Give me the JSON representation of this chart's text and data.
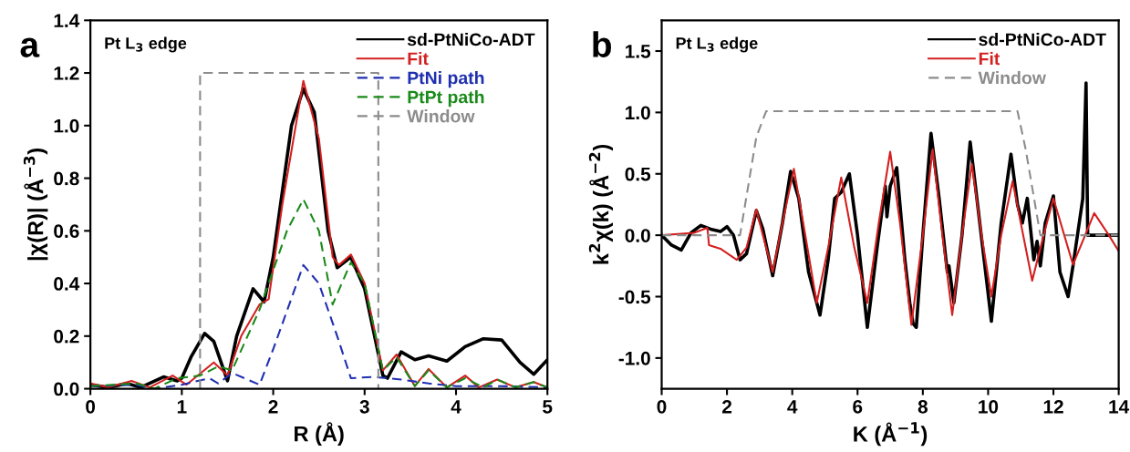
{
  "chart_data": [
    {
      "type": "line",
      "title": "a",
      "xlabel": "R (Å)",
      "ylabel": "|χ(R)| (Å$^{−3}$)",
      "annotations": [
        "Pt L$_{3}$ edge"
      ],
      "xlim": [
        0,
        5
      ],
      "xticks": [
        0,
        1,
        2,
        3,
        4,
        5
      ],
      "ylim": [
        0,
        1.4
      ],
      "yticks": [
        {
          "value": 0,
          "label": "0.0"
        },
        {
          "value": 0.2,
          "label": "0.2"
        },
        {
          "value": 0.4,
          "label": "0.4"
        },
        {
          "value": 0.6,
          "label": "0.6"
        },
        {
          "value": 0.8,
          "label": "0.8"
        },
        {
          "value": 1.0,
          "label": "1.0"
        },
        {
          "value": 1.2,
          "label": "1.2"
        },
        {
          "value": 1.4,
          "label": "1.4"
        }
      ],
      "legend": "top right",
      "grid": false,
      "series": [
        {
          "name": "sd-PtNiCo-ADT",
          "color": "#000000",
          "line_style": "solid",
          "x": [
            0,
            0.2,
            0.4,
            0.55,
            0.8,
            0.95,
            1.0,
            1.1,
            1.25,
            1.35,
            1.5,
            1.6,
            1.78,
            1.9,
            2.0,
            2.2,
            2.33,
            2.45,
            2.6,
            2.7,
            2.85,
            3.0,
            3.2,
            3.25,
            3.4,
            3.55,
            3.7,
            3.9,
            4.1,
            4.3,
            4.5,
            4.7,
            4.85,
            5.0
          ],
          "values": [
            0.015,
            0.005,
            0.02,
            0.005,
            0.045,
            0.03,
            0.04,
            0.12,
            0.21,
            0.18,
            0.03,
            0.2,
            0.38,
            0.33,
            0.5,
            1.0,
            1.14,
            1.05,
            0.6,
            0.46,
            0.5,
            0.38,
            0.05,
            0.04,
            0.14,
            0.11,
            0.125,
            0.105,
            0.16,
            0.19,
            0.185,
            0.1,
            0.055,
            0.11
          ]
        },
        {
          "name": "Fit",
          "color": "#d42020",
          "line_style": "solid",
          "x": [
            0,
            0.2,
            0.45,
            0.65,
            0.9,
            1.05,
            1.35,
            1.5,
            1.65,
            1.85,
            1.95,
            2.1,
            2.33,
            2.5,
            2.65,
            2.72,
            2.85,
            3.0,
            3.2,
            3.35,
            3.55,
            3.7,
            3.9,
            4.1,
            4.25,
            4.45,
            4.65,
            4.85,
            5.0
          ],
          "values": [
            0.02,
            0.005,
            0.03,
            0.005,
            0.05,
            0.015,
            0.1,
            0.05,
            0.2,
            0.32,
            0.34,
            0.7,
            1.17,
            0.95,
            0.5,
            0.47,
            0.51,
            0.4,
            0.07,
            0.13,
            0.01,
            0.075,
            0.005,
            0.05,
            0.005,
            0.035,
            0.005,
            0.025,
            0.005
          ]
        },
        {
          "name": "PtNi path",
          "color": "#1f2fb0",
          "line_style": "dashed",
          "x": [
            0,
            0.5,
            0.7,
            1.0,
            1.3,
            1.4,
            1.55,
            1.85,
            2.0,
            2.33,
            2.5,
            2.7,
            2.85,
            3.1,
            3.4,
            3.7,
            4.0,
            4.5,
            5.0
          ],
          "values": [
            0.01,
            0.015,
            0.0,
            0.015,
            0.04,
            0.02,
            0.06,
            0.015,
            0.15,
            0.47,
            0.4,
            0.2,
            0.04,
            0.045,
            0.035,
            0.02,
            0.01,
            0.01,
            0.005
          ]
        },
        {
          "name": "PtPt path",
          "color": "#1a8a1a",
          "line_style": "dashed",
          "x": [
            0,
            0.5,
            0.7,
            0.95,
            1.2,
            1.4,
            1.55,
            1.85,
            2.0,
            2.15,
            2.33,
            2.5,
            2.65,
            2.85,
            3.0,
            3.2,
            3.35,
            3.55,
            3.7,
            3.9,
            4.1,
            4.3,
            4.45,
            4.65,
            4.85,
            5.0
          ],
          "values": [
            0.01,
            0.02,
            0.0,
            0.04,
            0.05,
            0.085,
            0.07,
            0.3,
            0.45,
            0.6,
            0.72,
            0.6,
            0.32,
            0.48,
            0.4,
            0.07,
            0.12,
            0.01,
            0.07,
            0.005,
            0.04,
            0.005,
            0.035,
            0.005,
            0.025,
            0.005
          ]
        },
        {
          "name": "Window",
          "color": "#8c8c8c",
          "line_style": "dashed",
          "x": [
            1.2,
            1.2,
            3.15,
            3.15
          ],
          "values": [
            0,
            1.2,
            1.2,
            0
          ]
        }
      ]
    },
    {
      "type": "line",
      "title": "b",
      "xlabel": "K (Å$^{−1}$)",
      "ylabel": "k$^{2}$χ(k) (Å$^{−2}$)",
      "annotations": [
        "Pt L$_{3}$ edge"
      ],
      "xlim": [
        0,
        14
      ],
      "xticks": [
        0,
        2,
        4,
        6,
        8,
        10,
        12,
        14
      ],
      "ylim": [
        -1.25,
        1.75
      ],
      "yticks": [
        {
          "value": -1.0,
          "label": "-1.0"
        },
        {
          "value": -0.5,
          "label": "-0.5"
        },
        {
          "value": 0,
          "label": "0.0"
        },
        {
          "value": 0.5,
          "label": "0.5"
        },
        {
          "value": 1.0,
          "label": "1.0"
        },
        {
          "value": 1.5,
          "label": "1.5"
        }
      ],
      "legend": "top right",
      "grid": false,
      "series": [
        {
          "name": "sd-PtNiCo-ADT",
          "color": "#000000",
          "line_style": "solid",
          "x": [
            0,
            0.3,
            0.6,
            0.9,
            1.2,
            1.5,
            1.8,
            2.0,
            2.2,
            2.4,
            2.6,
            2.9,
            3.1,
            3.4,
            3.7,
            3.95,
            4.2,
            4.5,
            4.85,
            5.1,
            5.3,
            5.5,
            5.75,
            6.0,
            6.3,
            6.6,
            6.85,
            6.9,
            7.0,
            7.2,
            7.45,
            7.6,
            7.7,
            7.8,
            8.0,
            8.25,
            8.5,
            8.75,
            8.8,
            8.95,
            9.2,
            9.45,
            9.7,
            10.1,
            10.4,
            10.7,
            10.9,
            11.05,
            11.2,
            11.4,
            11.5,
            11.6,
            11.75,
            12.0,
            12.2,
            12.45,
            12.6,
            12.9,
            13.0,
            13.05,
            13.1,
            14
          ],
          "values": [
            0,
            -0.08,
            -0.12,
            0.02,
            0.08,
            0.05,
            0.03,
            0.07,
            0.0,
            -0.2,
            -0.15,
            0.2,
            0.05,
            -0.33,
            0.1,
            0.52,
            0.3,
            -0.3,
            -0.65,
            -0.2,
            0.3,
            0.35,
            0.5,
            0.0,
            -0.75,
            -0.1,
            0.4,
            0.15,
            0.4,
            0.55,
            -0.2,
            -0.55,
            -0.72,
            -0.75,
            0.0,
            0.83,
            0.3,
            -0.3,
            -0.25,
            -0.55,
            0.0,
            0.76,
            0.2,
            -0.7,
            0.1,
            0.66,
            0.25,
            0.1,
            0.3,
            -0.2,
            -0.05,
            -0.25,
            0.1,
            0.32,
            -0.3,
            -0.5,
            -0.25,
            0.3,
            1.24,
            0.0,
            0.0,
            0.0
          ]
        },
        {
          "name": "Fit",
          "color": "#d42020",
          "line_style": "solid",
          "x": [
            0,
            1.0,
            1.4,
            1.45,
            1.8,
            2.3,
            2.6,
            2.9,
            3.1,
            3.4,
            3.7,
            4.05,
            4.4,
            4.75,
            5.1,
            5.5,
            5.9,
            6.3,
            6.65,
            7.0,
            7.3,
            7.65,
            8.0,
            8.3,
            8.6,
            8.9,
            9.2,
            9.5,
            9.8,
            10.1,
            10.4,
            10.75,
            11.0,
            11.35,
            11.7,
            12.0,
            12.6,
            13.25,
            13.7,
            14
          ],
          "values": [
            0,
            0.02,
            0.06,
            -0.08,
            -0.11,
            -0.2,
            -0.1,
            0.21,
            0.0,
            -0.3,
            0.1,
            0.54,
            0.0,
            -0.55,
            -0.1,
            0.47,
            -0.1,
            -0.55,
            0.1,
            0.68,
            0.1,
            -0.73,
            0.0,
            0.7,
            0.0,
            -0.65,
            0.0,
            0.58,
            0.0,
            -0.5,
            0.0,
            0.44,
            0.1,
            -0.37,
            0.0,
            0.3,
            -0.24,
            0.18,
            0.0,
            -0.13
          ]
        },
        {
          "name": "Window",
          "color": "#8c8c8c",
          "line_style": "dashed",
          "x": [
            0,
            2.4,
            2.9,
            3.2,
            10.9,
            11.15,
            11.6,
            14
          ],
          "values": [
            0,
            0,
            0.8,
            1.01,
            1.01,
            0.7,
            0.0,
            0
          ]
        }
      ]
    }
  ]
}
